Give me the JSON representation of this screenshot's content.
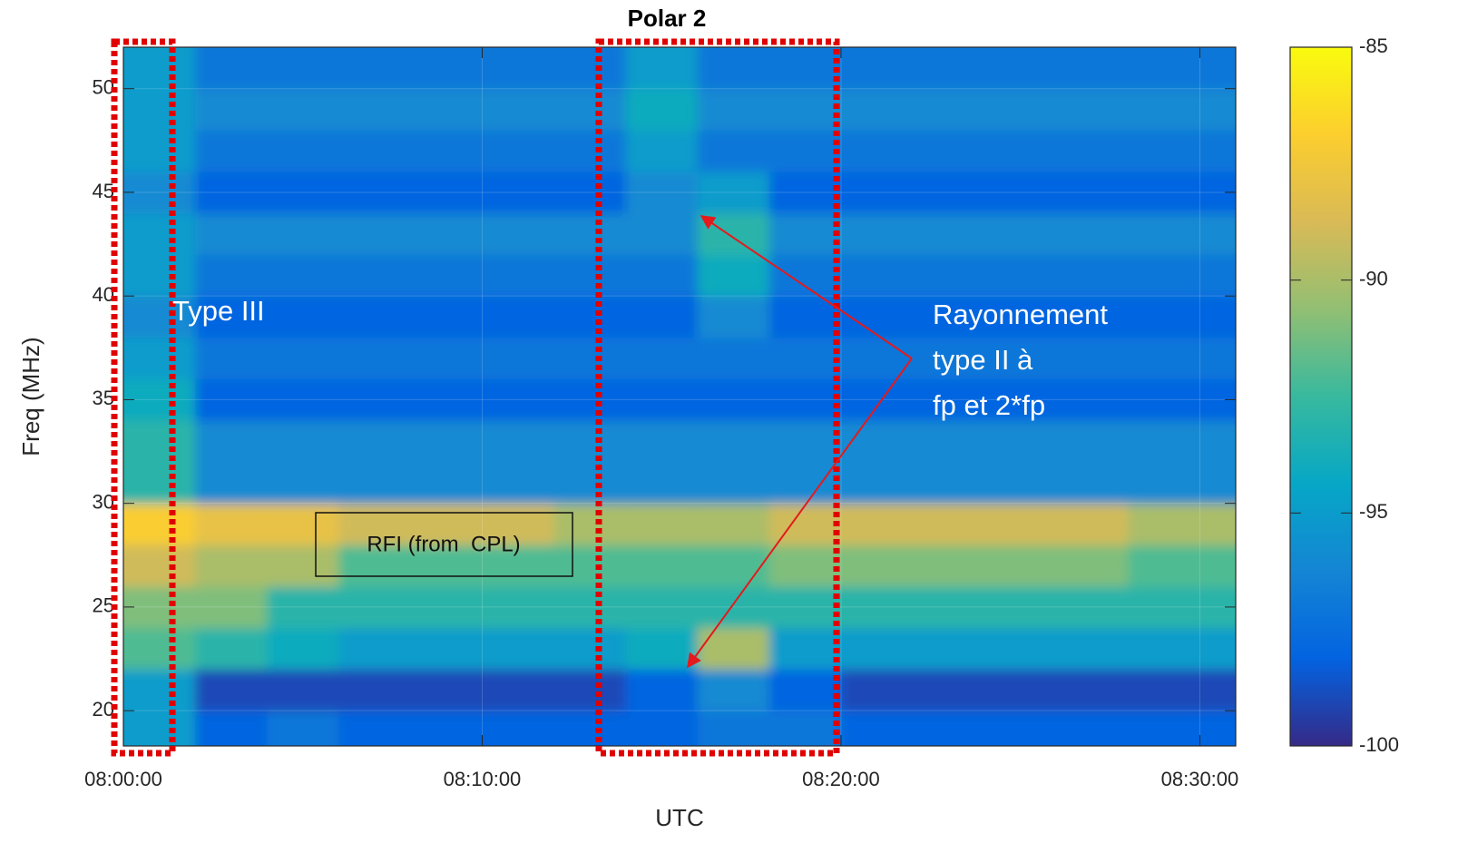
{
  "chart_data": {
    "type": "heatmap",
    "title": "Polar 2",
    "x_label": "UTC",
    "y_label": "Freq (MHz)",
    "x": [
      "08:00:00",
      "08:02:00",
      "08:04:00",
      "08:06:00",
      "08:08:00",
      "08:10:00",
      "08:12:00",
      "08:14:00",
      "08:16:00",
      "08:18:00",
      "08:20:00",
      "08:22:00",
      "08:24:00",
      "08:26:00",
      "08:28:00",
      "08:30:00"
    ],
    "xlim": [
      "08:00:00",
      "08:31:00"
    ],
    "xticks": [
      "08:00:00",
      "08:10:00",
      "08:20:00",
      "08:30:00"
    ],
    "y_edges": [
      18.3,
      20,
      22,
      24,
      26,
      28,
      30,
      32,
      34,
      36,
      38,
      40,
      42,
      44,
      46,
      48,
      50,
      52
    ],
    "ylim": [
      18.3,
      52
    ],
    "yticks": [
      20,
      25,
      30,
      35,
      40,
      45,
      50
    ],
    "grid": true,
    "colormap": "parula",
    "zlim": [
      -100,
      -85
    ],
    "zticks": [
      -100,
      -95,
      -90,
      -85
    ],
    "z": [
      [
        -95,
        -98,
        -97,
        -98,
        -98,
        -98,
        -98,
        -98,
        -97,
        -97,
        -98,
        -98,
        -98,
        -98,
        -98
      ],
      [
        -95,
        -99,
        -99,
        -99,
        -99,
        -99,
        -99,
        -98,
        -96,
        -98,
        -99,
        -99,
        -99,
        -99,
        -99
      ],
      [
        -92,
        -93,
        -94,
        -95,
        -95,
        -95,
        -95,
        -94,
        -90,
        -95,
        -95,
        -95,
        -95,
        -95,
        -95
      ],
      [
        -91,
        -91,
        -93,
        -93,
        -93,
        -93,
        -93,
        -93,
        -93,
        -93,
        -93,
        -93,
        -93,
        -93,
        -93
      ],
      [
        -89,
        -90,
        -90,
        -92,
        -92,
        -92,
        -92,
        -92,
        -92,
        -91,
        -91,
        -91,
        -91,
        -91,
        -92
      ],
      [
        -87,
        -88,
        -88,
        -89,
        -89,
        -89,
        -90,
        -90,
        -90,
        -89,
        -89,
        -89,
        -89,
        -89,
        -90
      ],
      [
        -93,
        -96,
        -96,
        -96,
        -96,
        -96,
        -96,
        -96,
        -96,
        -96,
        -96,
        -96,
        -96,
        -96,
        -96
      ],
      [
        -93,
        -96,
        -96,
        -96,
        -96,
        -96,
        -96,
        -96,
        -96,
        -96,
        -96,
        -96,
        -96,
        -96,
        -96
      ],
      [
        -94,
        -98,
        -98,
        -98,
        -98,
        -98,
        -98,
        -98,
        -98,
        -98,
        -98,
        -98,
        -98,
        -98,
        -98
      ],
      [
        -95,
        -97,
        -97,
        -97,
        -97,
        -97,
        -97,
        -97,
        -97,
        -97,
        -97,
        -97,
        -97,
        -97,
        -97
      ],
      [
        -96,
        -98,
        -98,
        -98,
        -98,
        -98,
        -98,
        -98,
        -96,
        -98,
        -98,
        -98,
        -98,
        -98,
        -98
      ],
      [
        -95,
        -97,
        -97,
        -97,
        -97,
        -97,
        -97,
        -97,
        -94,
        -97,
        -97,
        -97,
        -97,
        -97,
        -97
      ],
      [
        -95,
        -96,
        -96,
        -96,
        -96,
        -96,
        -96,
        -96,
        -93,
        -96,
        -96,
        -96,
        -96,
        -96,
        -96
      ],
      [
        -96,
        -98,
        -98,
        -98,
        -98,
        -98,
        -98,
        -96,
        -95,
        -98,
        -98,
        -98,
        -98,
        -98,
        -98
      ],
      [
        -95,
        -97,
        -97,
        -97,
        -97,
        -97,
        -97,
        -95,
        -97,
        -97,
        -97,
        -97,
        -97,
        -97,
        -97
      ],
      [
        -95,
        -96,
        -96,
        -96,
        -96,
        -96,
        -96,
        -94,
        -96,
        -96,
        -96,
        -96,
        -96,
        -96,
        -96
      ],
      [
        -95,
        -97,
        -97,
        -97,
        -97,
        -97,
        -97,
        -95,
        -97,
        -97,
        -97,
        -97,
        -97,
        -97,
        -97
      ]
    ],
    "annotations": {
      "type3": "Type III",
      "rfi": "RFI (from  CPL)",
      "type2": [
        "Rayonnement",
        "type II à",
        "fp et 2*fp"
      ]
    }
  }
}
